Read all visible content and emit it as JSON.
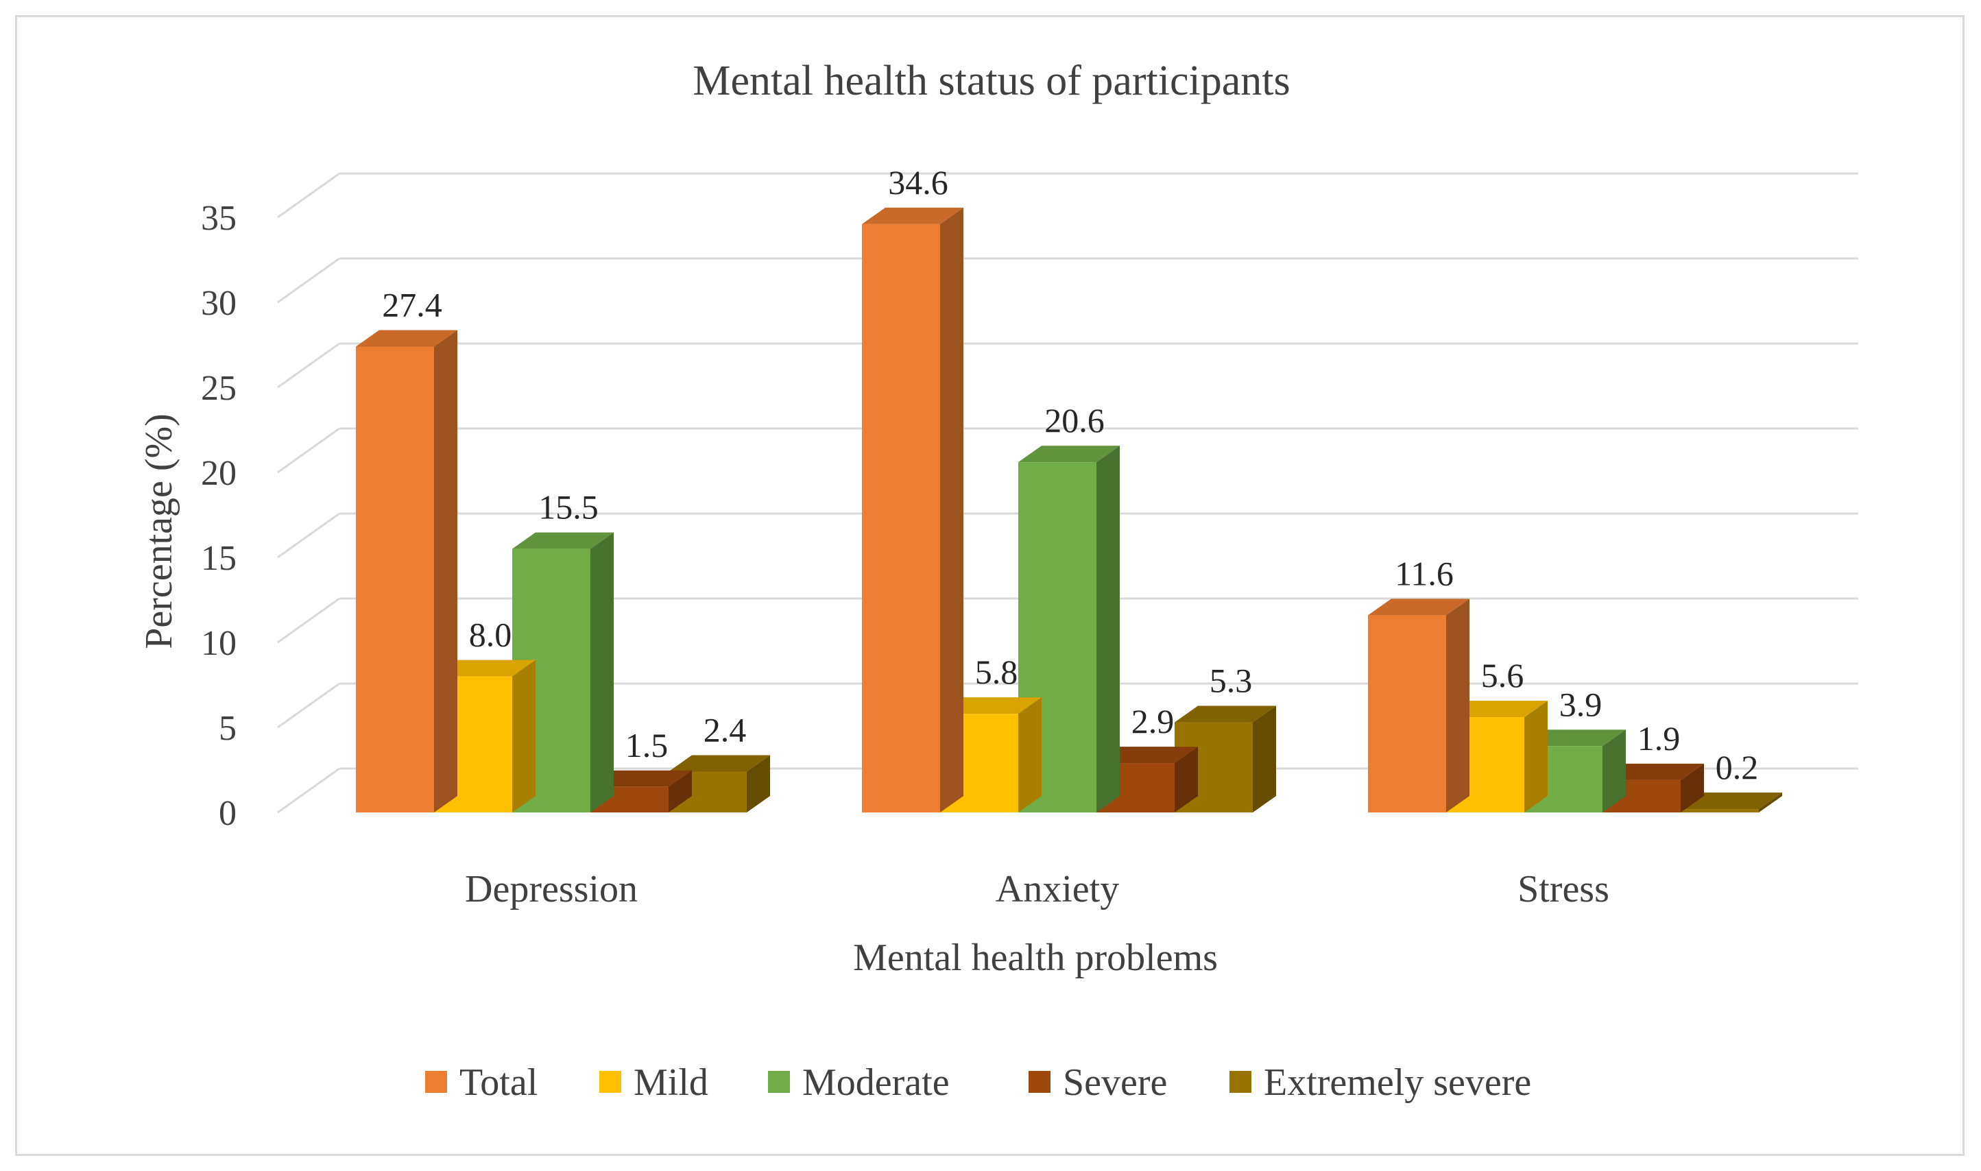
{
  "chart_data": {
    "type": "bar",
    "title": "Mental health status of participants",
    "xlabel": "Mental health problems",
    "ylabel": "Percentage (%)",
    "ylim": [
      0,
      35
    ],
    "yticks": [
      "0",
      "5",
      "10",
      "15",
      "20",
      "25",
      "30",
      "35"
    ],
    "categories": [
      "Depression",
      "Anxiety",
      "Stress"
    ],
    "series": [
      {
        "name": "Total",
        "color": "#ed7d31",
        "values": [
          27.4,
          34.6,
          11.6
        ],
        "labels": [
          "27.4",
          "34.6",
          "11.6"
        ]
      },
      {
        "name": "Mild",
        "color": "#ffc000",
        "values": [
          8.0,
          5.8,
          5.6
        ],
        "labels": [
          "8.0",
          "5.8",
          "5.6"
        ]
      },
      {
        "name": "Moderate",
        "color": "#70ad47",
        "values": [
          15.5,
          20.6,
          3.9
        ],
        "labels": [
          "15.5",
          "20.6",
          "3.9"
        ]
      },
      {
        "name": "Severe",
        "color": "#9e480e",
        "values": [
          1.5,
          2.9,
          1.9
        ],
        "labels": [
          "1.5",
          "2.9",
          "1.9"
        ]
      },
      {
        "name": "Extremely severe",
        "color": "#997300",
        "values": [
          2.4,
          5.3,
          0.2
        ],
        "labels": [
          "2.4",
          "5.3",
          "0.2"
        ]
      }
    ],
    "grid": true,
    "legend": "bottom",
    "style": "3d-clustered-column"
  }
}
